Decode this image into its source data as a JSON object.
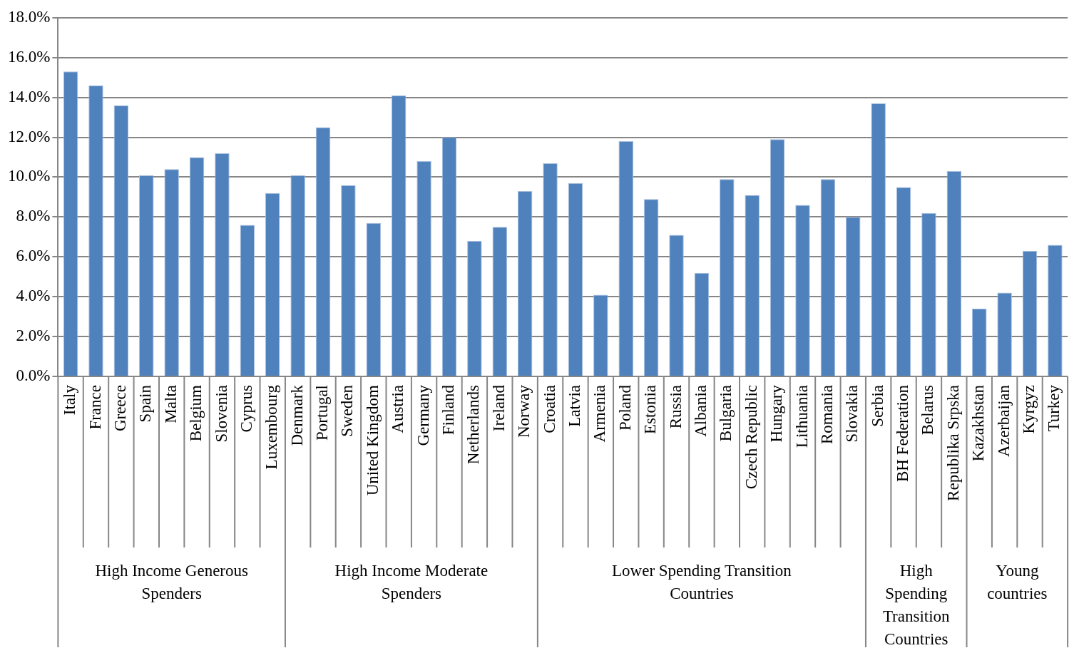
{
  "chart_data": {
    "type": "bar",
    "categories": [
      "Italy",
      "France",
      "Greece",
      "Spain",
      "Malta",
      "Belgium",
      "Slovenia",
      "Cyprus",
      "Luxembourg",
      "Denmark",
      "Portugal",
      "Sweden",
      "United Kingdom",
      "Austria",
      "Germany",
      "Finland",
      "Netherlands",
      "Ireland",
      "Norway",
      "Croatia",
      "Latvia",
      "Armenia",
      "Poland",
      "Estonia",
      "Russia",
      "Albania",
      "Bulgaria",
      "Czech Republic",
      "Hungary",
      "Lithuania",
      "Romania",
      "Slovakia",
      "Serbia",
      "BH Federation",
      "Belarus",
      "Republika Srpska",
      "Kazakhstan",
      "Azerbaijan",
      "Kyrgyz",
      "Turkey"
    ],
    "values": [
      15.3,
      14.6,
      13.6,
      10.1,
      10.4,
      11.0,
      11.2,
      7.6,
      9.2,
      10.1,
      12.5,
      9.6,
      7.7,
      14.1,
      10.8,
      12.0,
      6.8,
      7.5,
      9.3,
      10.7,
      9.7,
      4.1,
      11.8,
      8.9,
      7.1,
      5.2,
      9.9,
      9.1,
      11.9,
      8.6,
      9.9,
      8.0,
      13.7,
      9.5,
      8.2,
      10.3,
      3.4,
      4.2,
      6.3,
      6.6
    ],
    "color": "#4f81bd",
    "ylim": [
      0,
      18
    ],
    "yticks": [
      {
        "value": 0,
        "label": "0.0%"
      },
      {
        "value": 2,
        "label": "2.0%"
      },
      {
        "value": 4,
        "label": "4.0%"
      },
      {
        "value": 6,
        "label": "6.0%"
      },
      {
        "value": 8,
        "label": "8.0%"
      },
      {
        "value": 10,
        "label": "10.0%"
      },
      {
        "value": 12,
        "label": "12.0%"
      },
      {
        "value": 14,
        "label": "14.0%"
      },
      {
        "value": 16,
        "label": "16.0%"
      },
      {
        "value": 18,
        "label": "18.0%"
      }
    ],
    "grid": "y",
    "legend": false,
    "annotations": [
      "High Income Generous Spenders",
      "High Income Moderate Spenders",
      "Lower Spending Transition Countries",
      "High Spending Transition Countries",
      "Young countries"
    ]
  }
}
